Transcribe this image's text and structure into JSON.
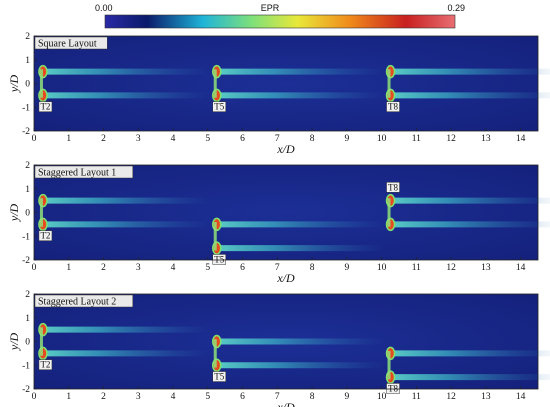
{
  "colorbar": {
    "label": "EPR",
    "min_label": "0.00",
    "max_label": "0.29",
    "colors": [
      "#2a2aa6",
      "#0a1a6a",
      "#1fb4d8",
      "#7fe07a",
      "#e8e83a",
      "#f08a1a",
      "#c82020",
      "#e86e72"
    ]
  },
  "axes": {
    "x_label": "x/D",
    "y_label": "y/D",
    "x_ticks": [
      "0",
      "1",
      "2",
      "3",
      "4",
      "5",
      "6",
      "7",
      "8",
      "9",
      "10",
      "11",
      "12",
      "13",
      "14"
    ],
    "y_ticks": [
      "2",
      "1",
      "0",
      "-1",
      "-2"
    ]
  },
  "panels": [
    {
      "title": "Square Layout",
      "turbines": [
        {
          "label": "T2",
          "x": 0.2,
          "y": 0.0
        },
        {
          "label": "T5",
          "x": 5.2,
          "y": 0.0
        },
        {
          "label": "T8",
          "x": 10.2,
          "y": 0.0
        }
      ]
    },
    {
      "title": "Staggered Layout 1",
      "turbines": [
        {
          "label": "T2",
          "x": 0.2,
          "y": 0.0
        },
        {
          "label": "T5",
          "x": 5.2,
          "y": -1.0
        },
        {
          "label": "T8",
          "x": 10.2,
          "y": 0.0
        }
      ]
    },
    {
      "title": "Staggered Layout 2",
      "turbines": [
        {
          "label": "T2",
          "x": 0.2,
          "y": 0.0
        },
        {
          "label": "T5",
          "x": 5.2,
          "y": -0.5
        },
        {
          "label": "T8",
          "x": 10.2,
          "y": -1.0
        }
      ]
    }
  ]
}
